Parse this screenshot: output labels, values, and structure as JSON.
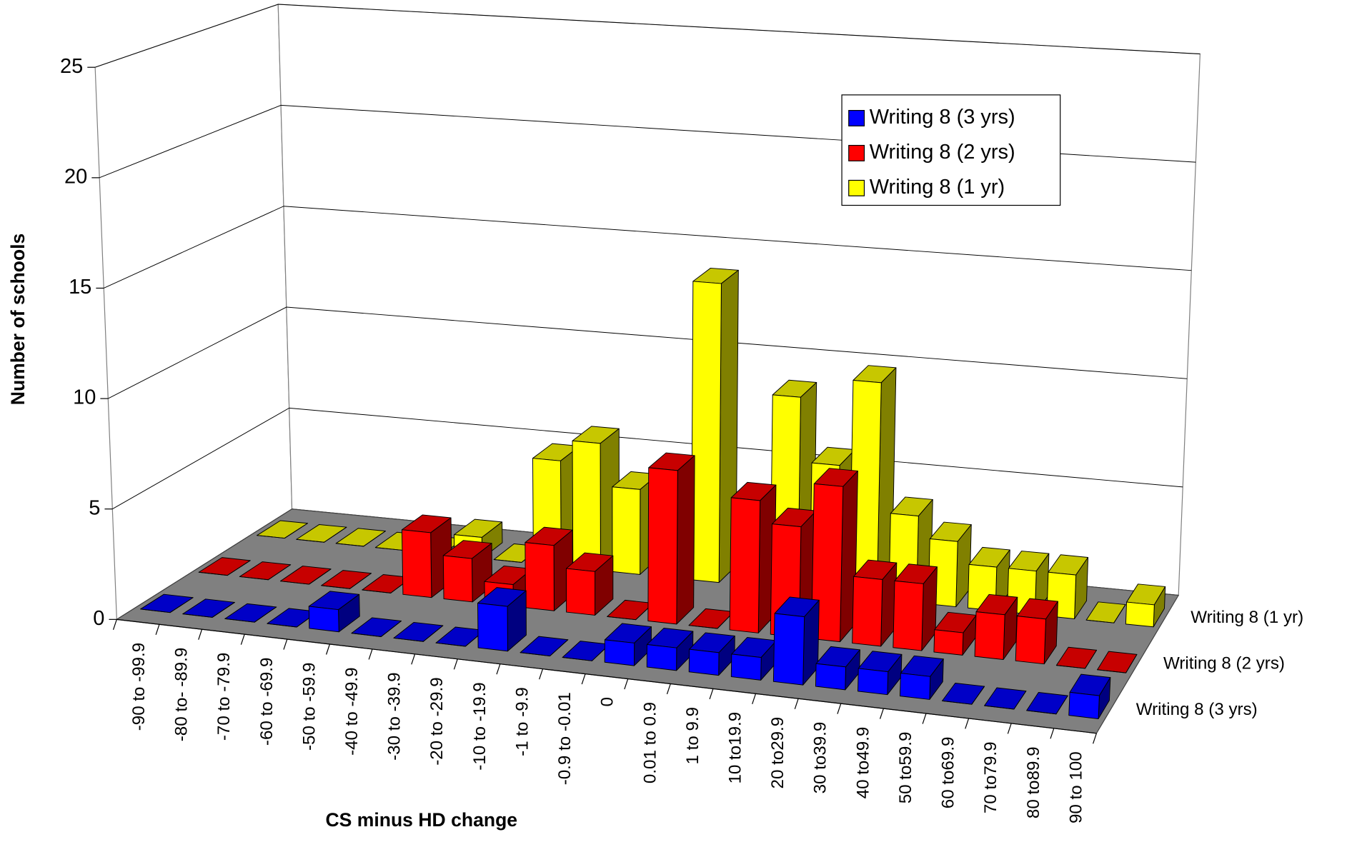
{
  "chart_data": {
    "type": "bar3d",
    "x_label": "CS minus HD change",
    "y_label": "Number of schools",
    "categories": [
      "-90 to -99.9",
      "-80 to- -89.9",
      "-70 to -79.9",
      "-60 to -69.9",
      "-50 to -59.9",
      "-40 to -49.9",
      "-30 to -39.9",
      "-20 to -29.9",
      "-10 to -19.9",
      "-1 to -9.9",
      "-0.9 to -0.01",
      "0",
      "0.01 to 0.9",
      "1 to 9.9",
      "10 to19.9",
      "20 to29.9",
      "30 to39.9",
      "40 to49.9",
      "50 to59.9",
      "60 to69.9",
      "70 to79.9",
      "80 to89.9",
      "90  to 100"
    ],
    "series": [
      {
        "name": "Writing 8  (3 yrs)",
        "color": "#0000ff",
        "values": [
          0,
          0,
          0,
          0,
          1,
          0,
          0,
          0,
          2,
          0,
          0,
          1,
          1,
          1,
          1,
          3,
          1,
          1,
          1,
          0,
          0,
          0,
          1
        ]
      },
      {
        "name": "Writing 8  (2 yrs)",
        "color": "#ff0000",
        "values": [
          0,
          0,
          0,
          0,
          0,
          3,
          2,
          1,
          3,
          2,
          0,
          7,
          0,
          6,
          5,
          7,
          3,
          3,
          1,
          2,
          2,
          0,
          0
        ]
      },
      {
        "name": "Writing 8  (1 yr)",
        "color": "#ffff00",
        "values": [
          0,
          0,
          0,
          0,
          0,
          1,
          0,
          5,
          6,
          4,
          0,
          14,
          0,
          9,
          6,
          10,
          4,
          3,
          2,
          2,
          2,
          0,
          1
        ]
      }
    ],
    "ylim": [
      0,
      25
    ],
    "yticks": [
      0,
      5,
      10,
      15,
      20,
      25
    ],
    "grid": true,
    "legend": "top-right"
  }
}
